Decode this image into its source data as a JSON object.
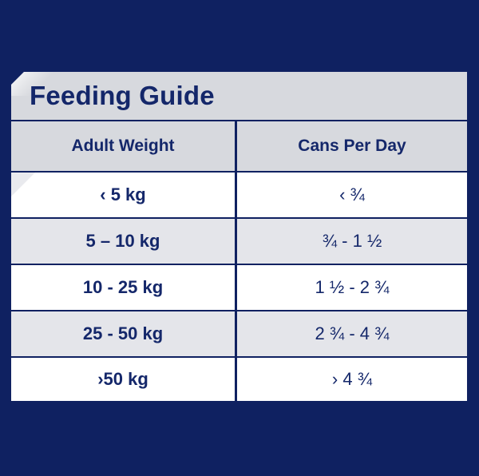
{
  "title": "Feeding Guide",
  "columns": [
    "Adult Weight",
    "Cans Per Day"
  ],
  "rows": [
    {
      "weight": "‹ 5 kg",
      "cans": "‹ ¾"
    },
    {
      "weight": "5 – 10 kg",
      "cans": "¾ - 1 ½"
    },
    {
      "weight": "10 - 25 kg",
      "cans": "1 ½ - 2 ¾"
    },
    {
      "weight": "25 - 50 kg",
      "cans": "2 ¾ - 4 ¾"
    },
    {
      "weight": "›50 kg",
      "cans": "› 4 ¾"
    }
  ],
  "colors": {
    "background": "#0f2161",
    "text": "#14276a",
    "header_bg": "#d7d9de",
    "row_light": "#ffffff",
    "row_grey": "#e4e5ea"
  }
}
